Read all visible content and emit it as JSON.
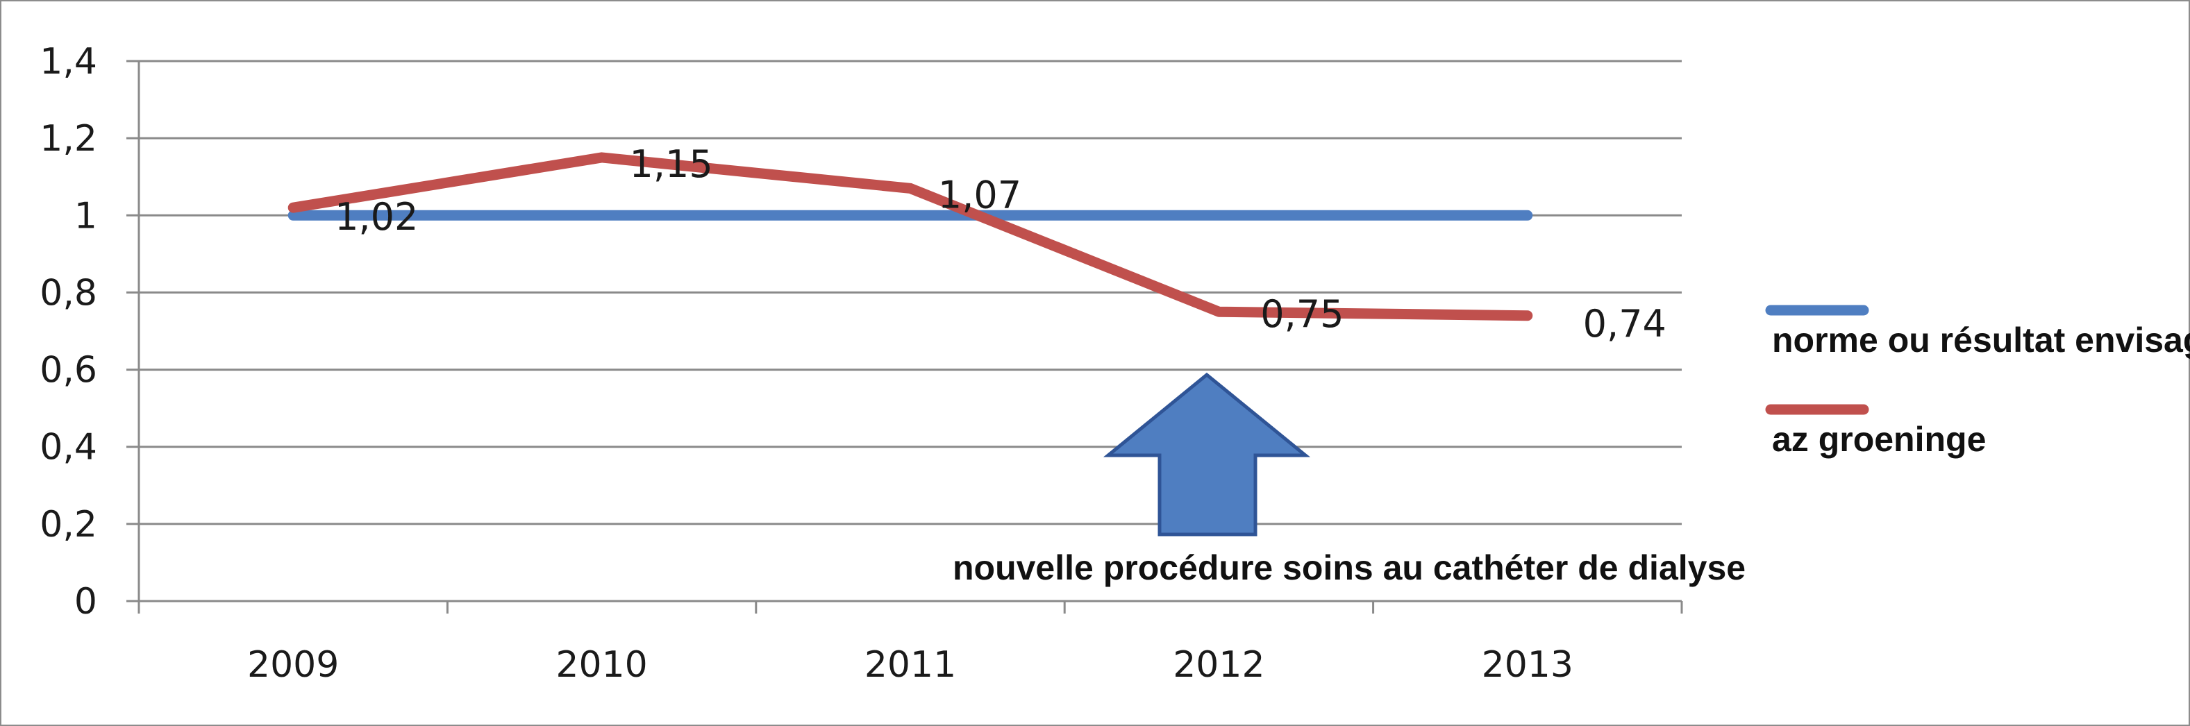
{
  "chart_data": {
    "type": "line",
    "title": "",
    "xlabel": "",
    "ylabel": "",
    "categories": [
      "2009",
      "2010",
      "2011",
      "2012",
      "2013"
    ],
    "ylim": [
      0,
      1.4
    ],
    "yticks": [
      "0",
      "0,2",
      "0,4",
      "0,6",
      "0,8",
      "1",
      "1,2",
      "1,4"
    ],
    "grid": true,
    "legend_position": "right",
    "series": [
      {
        "name": "norme ou résultat envisagé",
        "values": [
          1,
          1,
          1,
          1,
          1
        ],
        "color": "#4f7ec1",
        "data_labels": []
      },
      {
        "name": "az groeninge",
        "values": [
          1.02,
          1.15,
          1.07,
          0.75,
          0.74
        ],
        "color": "#c0504d",
        "data_labels": [
          "1,02",
          "1,15",
          "1,07",
          "0,75",
          "0,74"
        ]
      }
    ],
    "annotation": {
      "text": "nouvelle procédure soins au  cathéter de dialyse",
      "arrow_color": "#4f7ec1",
      "arrow_direction": "up",
      "points_to": "2012"
    }
  }
}
